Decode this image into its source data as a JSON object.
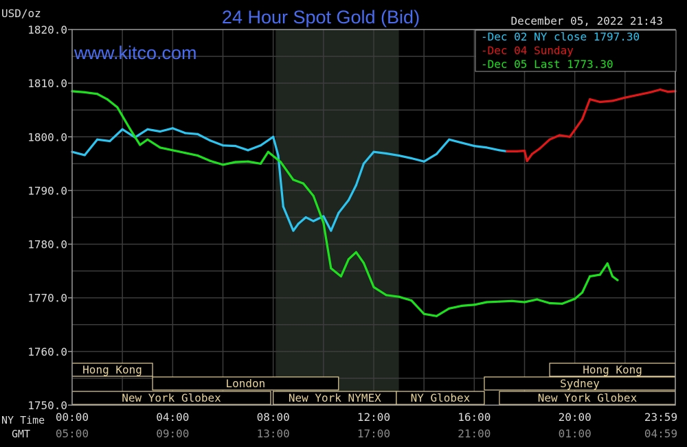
{
  "chart_data": {
    "type": "line",
    "title": "24 Hour Spot Gold (Bid)",
    "unit_label": "USD/oz",
    "watermark": "www.kitco.com",
    "timestamp": "December 05, 2022 21:43",
    "ylim": [
      1750,
      1820
    ],
    "y_ticks": [
      "1820.0",
      "1810.0",
      "1800.0",
      "1790.0",
      "1780.0",
      "1770.0",
      "1760.0",
      "1750.0"
    ],
    "x_axis_rows": [
      {
        "label": "NY Time",
        "ticks": [
          "00:00",
          "04:00",
          "08:00",
          "12:00",
          "16:00",
          "20:00",
          "23:59"
        ]
      },
      {
        "label": "GMT",
        "ticks": [
          "05:00",
          "09:00",
          "13:00",
          "17:00",
          "21:00",
          "01:00",
          "04:59"
        ]
      }
    ],
    "legend": [
      {
        "text": "Dec 02 NY close 1797.30",
        "color": "#2ec4f0"
      },
      {
        "text": "Dec 04 Sunday",
        "color": "#e01818"
      },
      {
        "text": "Dec 05 Last 1773.30",
        "color": "#1ee01e"
      }
    ],
    "series": [
      {
        "name": "Dec 02 NY close 1797.30",
        "color": "#2ec4f0",
        "x": [
          0,
          0.5,
          1,
          1.5,
          2,
          2.5,
          3,
          3.5,
          4,
          4.5,
          5,
          5.5,
          6,
          6.5,
          7,
          7.5,
          8,
          8.2,
          8.4,
          8.8,
          9,
          9.3,
          9.6,
          10,
          10.3,
          10.6,
          11,
          11.3,
          11.6,
          12,
          12.5,
          13,
          13.5,
          14,
          14.5,
          15,
          15.5,
          16,
          16.5,
          17,
          17.3
        ],
        "values": [
          1797.2,
          1796.6,
          1799.5,
          1799.2,
          1801.4,
          1799.9,
          1801.4,
          1801.0,
          1801.6,
          1800.7,
          1800.5,
          1799.3,
          1798.4,
          1798.3,
          1797.5,
          1798.4,
          1800.0,
          1796.5,
          1787.0,
          1782.5,
          1783.8,
          1785.0,
          1784.3,
          1785.2,
          1782.5,
          1785.8,
          1788.2,
          1791.0,
          1795.0,
          1797.2,
          1796.9,
          1796.5,
          1796.0,
          1795.4,
          1796.8,
          1799.5,
          1798.9,
          1798.3,
          1798.0,
          1797.5,
          1797.3
        ]
      },
      {
        "name": "Dec 04 Sunday",
        "color": "#e01818",
        "x": [
          17.3,
          17.7,
          18,
          18.1,
          18.3,
          18.6,
          19,
          19.4,
          19.8,
          20,
          20.3,
          20.6,
          21,
          21.5,
          22,
          22.5,
          23,
          23.4,
          23.7,
          24
        ],
        "values": [
          1797.3,
          1797.3,
          1797.4,
          1795.5,
          1796.8,
          1797.8,
          1799.5,
          1800.3,
          1800.0,
          1801.3,
          1803.3,
          1807.0,
          1806.5,
          1806.7,
          1807.3,
          1807.8,
          1808.3,
          1808.8,
          1808.4,
          1808.5
        ]
      },
      {
        "name": "Dec 05 Last 1773.30",
        "color": "#1ee01e",
        "x": [
          0,
          0.5,
          1,
          1.4,
          1.8,
          2.3,
          2.7,
          3,
          3.5,
          4,
          4.5,
          5,
          5.5,
          6,
          6.5,
          7,
          7.5,
          7.8,
          8.3,
          8.8,
          9.2,
          9.6,
          10,
          10.3,
          10.7,
          11,
          11.3,
          11.6,
          12,
          12.5,
          13,
          13.5,
          14,
          14.5,
          15,
          15.5,
          16,
          16.5,
          17,
          17.5,
          18,
          18.5,
          19,
          19.5,
          20,
          20.3,
          20.6,
          21,
          21.3,
          21.5,
          21.7
        ],
        "values": [
          1808.5,
          1808.3,
          1808.0,
          1807.0,
          1805.5,
          1801.5,
          1798.5,
          1799.5,
          1798.0,
          1797.5,
          1797.0,
          1796.5,
          1795.5,
          1794.8,
          1795.3,
          1795.4,
          1795.0,
          1797.2,
          1795.3,
          1792.0,
          1791.3,
          1789.0,
          1784.0,
          1775.5,
          1774.0,
          1777.2,
          1778.5,
          1776.5,
          1772.0,
          1770.5,
          1770.2,
          1769.5,
          1767.0,
          1766.6,
          1768.0,
          1768.5,
          1768.7,
          1769.2,
          1769.3,
          1769.4,
          1769.2,
          1769.7,
          1769.0,
          1768.9,
          1769.8,
          1771.0,
          1774.0,
          1774.3,
          1776.4,
          1774.0,
          1773.3
        ]
      }
    ],
    "sessions": [
      {
        "name": "Hong Kong",
        "row": 1,
        "start": 0,
        "end": 3.2
      },
      {
        "name": "London",
        "row": 2,
        "start": 3.2,
        "end": 10.6
      },
      {
        "name": "New York Globex",
        "row": 3,
        "start": 0,
        "end": 7.9
      },
      {
        "name": "New York NYMEX",
        "row": 3,
        "start": 8.0,
        "end": 12.9
      },
      {
        "name": "NY Globex",
        "row": 3,
        "start": 12.9,
        "end": 16.4
      },
      {
        "name": "Hong Kong",
        "row": 1,
        "start": 19.0,
        "end": 24
      },
      {
        "name": "Sydney",
        "row": 2,
        "start": 16.4,
        "end": 24
      },
      {
        "name": "New York Globex",
        "row": 3,
        "start": 17.0,
        "end": 24
      }
    ],
    "shaded_range": [
      8.1,
      13.0
    ],
    "grid": true,
    "legend_position": "top-right"
  }
}
